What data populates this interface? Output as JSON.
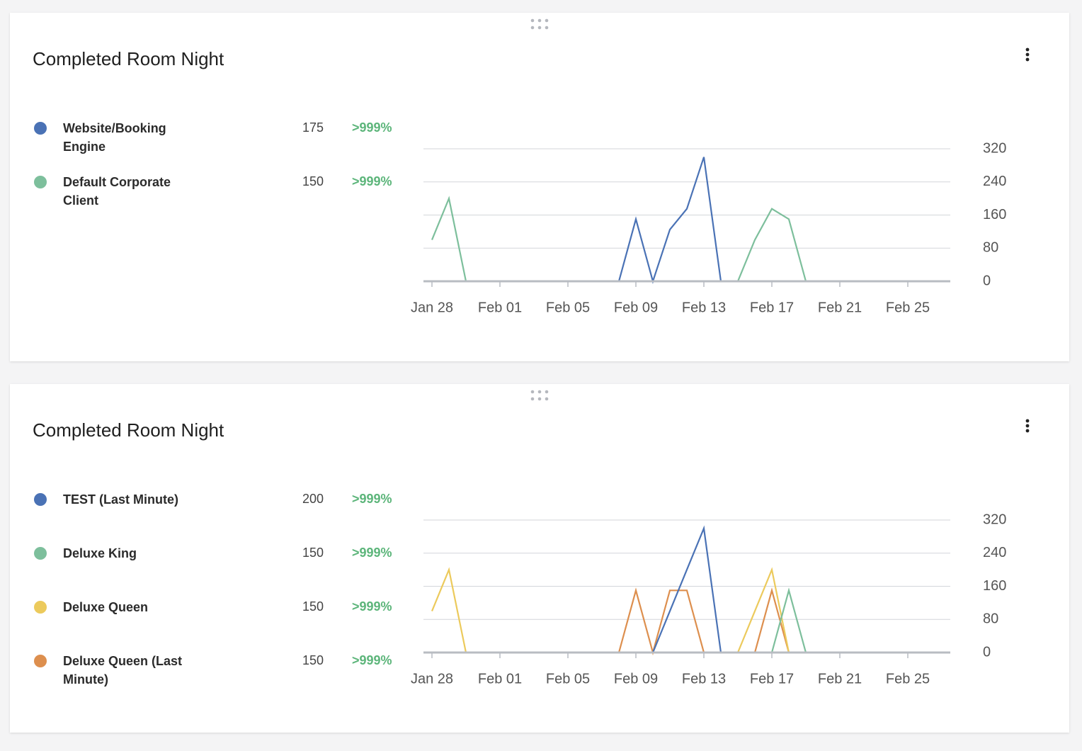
{
  "chart_data": [
    {
      "type": "line",
      "title": "Completed Room Night",
      "legend": "left",
      "y_axis_side": "right",
      "grid": true,
      "categories": [
        "Jan 28",
        null,
        null,
        null,
        "Feb 01",
        null,
        null,
        null,
        "Feb 05",
        null,
        null,
        null,
        "Feb 09",
        null,
        null,
        null,
        "Feb 13",
        null,
        null,
        null,
        "Feb 17",
        null,
        null,
        null,
        "Feb 21",
        null,
        null,
        null,
        "Feb 25",
        null,
        null
      ],
      "ylim": [
        0,
        320
      ],
      "yticks": [
        0,
        80,
        160,
        240,
        320
      ],
      "series": [
        {
          "name": "Website/Booking Engine",
          "color": "#4a72b5",
          "total": 175,
          "change": ">999%",
          "values": [
            0,
            0,
            0,
            0,
            0,
            0,
            0,
            0,
            0,
            0,
            0,
            0,
            150,
            0,
            125,
            175,
            300,
            0,
            0,
            0,
            0,
            0,
            0,
            0,
            0,
            0,
            0,
            0,
            0,
            0,
            0
          ]
        },
        {
          "name": "Default Corporate Client",
          "color": "#7dbf9c",
          "total": 150,
          "change": ">999%",
          "values": [
            100,
            200,
            0,
            0,
            0,
            0,
            0,
            0,
            0,
            0,
            0,
            0,
            0,
            0,
            0,
            0,
            0,
            0,
            0,
            100,
            175,
            150,
            0,
            0,
            0,
            0,
            0,
            0,
            0,
            0,
            0
          ]
        }
      ]
    },
    {
      "type": "line",
      "title": "Completed Room Night",
      "legend": "left",
      "y_axis_side": "right",
      "grid": true,
      "categories": [
        "Jan 28",
        null,
        null,
        null,
        "Feb 01",
        null,
        null,
        null,
        "Feb 05",
        null,
        null,
        null,
        "Feb 09",
        null,
        null,
        null,
        "Feb 13",
        null,
        null,
        null,
        "Feb 17",
        null,
        null,
        null,
        "Feb 21",
        null,
        null,
        null,
        "Feb 25",
        null,
        null
      ],
      "ylim": [
        0,
        320
      ],
      "yticks": [
        0,
        80,
        160,
        240,
        320
      ],
      "series": [
        {
          "name": "TEST (Last Minute)",
          "color": "#4a72b5",
          "total": 200,
          "change": ">999%",
          "values": [
            0,
            0,
            0,
            0,
            0,
            0,
            0,
            0,
            0,
            0,
            0,
            0,
            0,
            0,
            100,
            200,
            300,
            0,
            0,
            0,
            0,
            0,
            0,
            0,
            0,
            0,
            0,
            0,
            0,
            0,
            0
          ]
        },
        {
          "name": "Deluxe King",
          "color": "#7dbf9c",
          "total": 150,
          "change": ">999%",
          "values": [
            0,
            0,
            0,
            0,
            0,
            0,
            0,
            0,
            0,
            0,
            0,
            0,
            0,
            0,
            0,
            0,
            0,
            0,
            0,
            0,
            0,
            150,
            0,
            0,
            0,
            0,
            0,
            0,
            0,
            0,
            0
          ]
        },
        {
          "name": "Deluxe Queen",
          "color": "#ecca5c",
          "total": 150,
          "change": ">999%",
          "values": [
            100,
            200,
            0,
            0,
            0,
            0,
            0,
            0,
            0,
            0,
            0,
            0,
            0,
            0,
            0,
            0,
            0,
            0,
            0,
            100,
            200,
            0,
            0,
            0,
            0,
            0,
            0,
            0,
            0,
            0,
            0
          ]
        },
        {
          "name": "Deluxe Queen (Last Minute)",
          "color": "#dd8f4e",
          "total": 150,
          "change": ">999%",
          "values": [
            0,
            0,
            0,
            0,
            0,
            0,
            0,
            0,
            0,
            0,
            0,
            0,
            150,
            0,
            150,
            150,
            0,
            0,
            0,
            0,
            150,
            0,
            0,
            0,
            0,
            0,
            0,
            0,
            0,
            0,
            0
          ]
        }
      ]
    }
  ]
}
